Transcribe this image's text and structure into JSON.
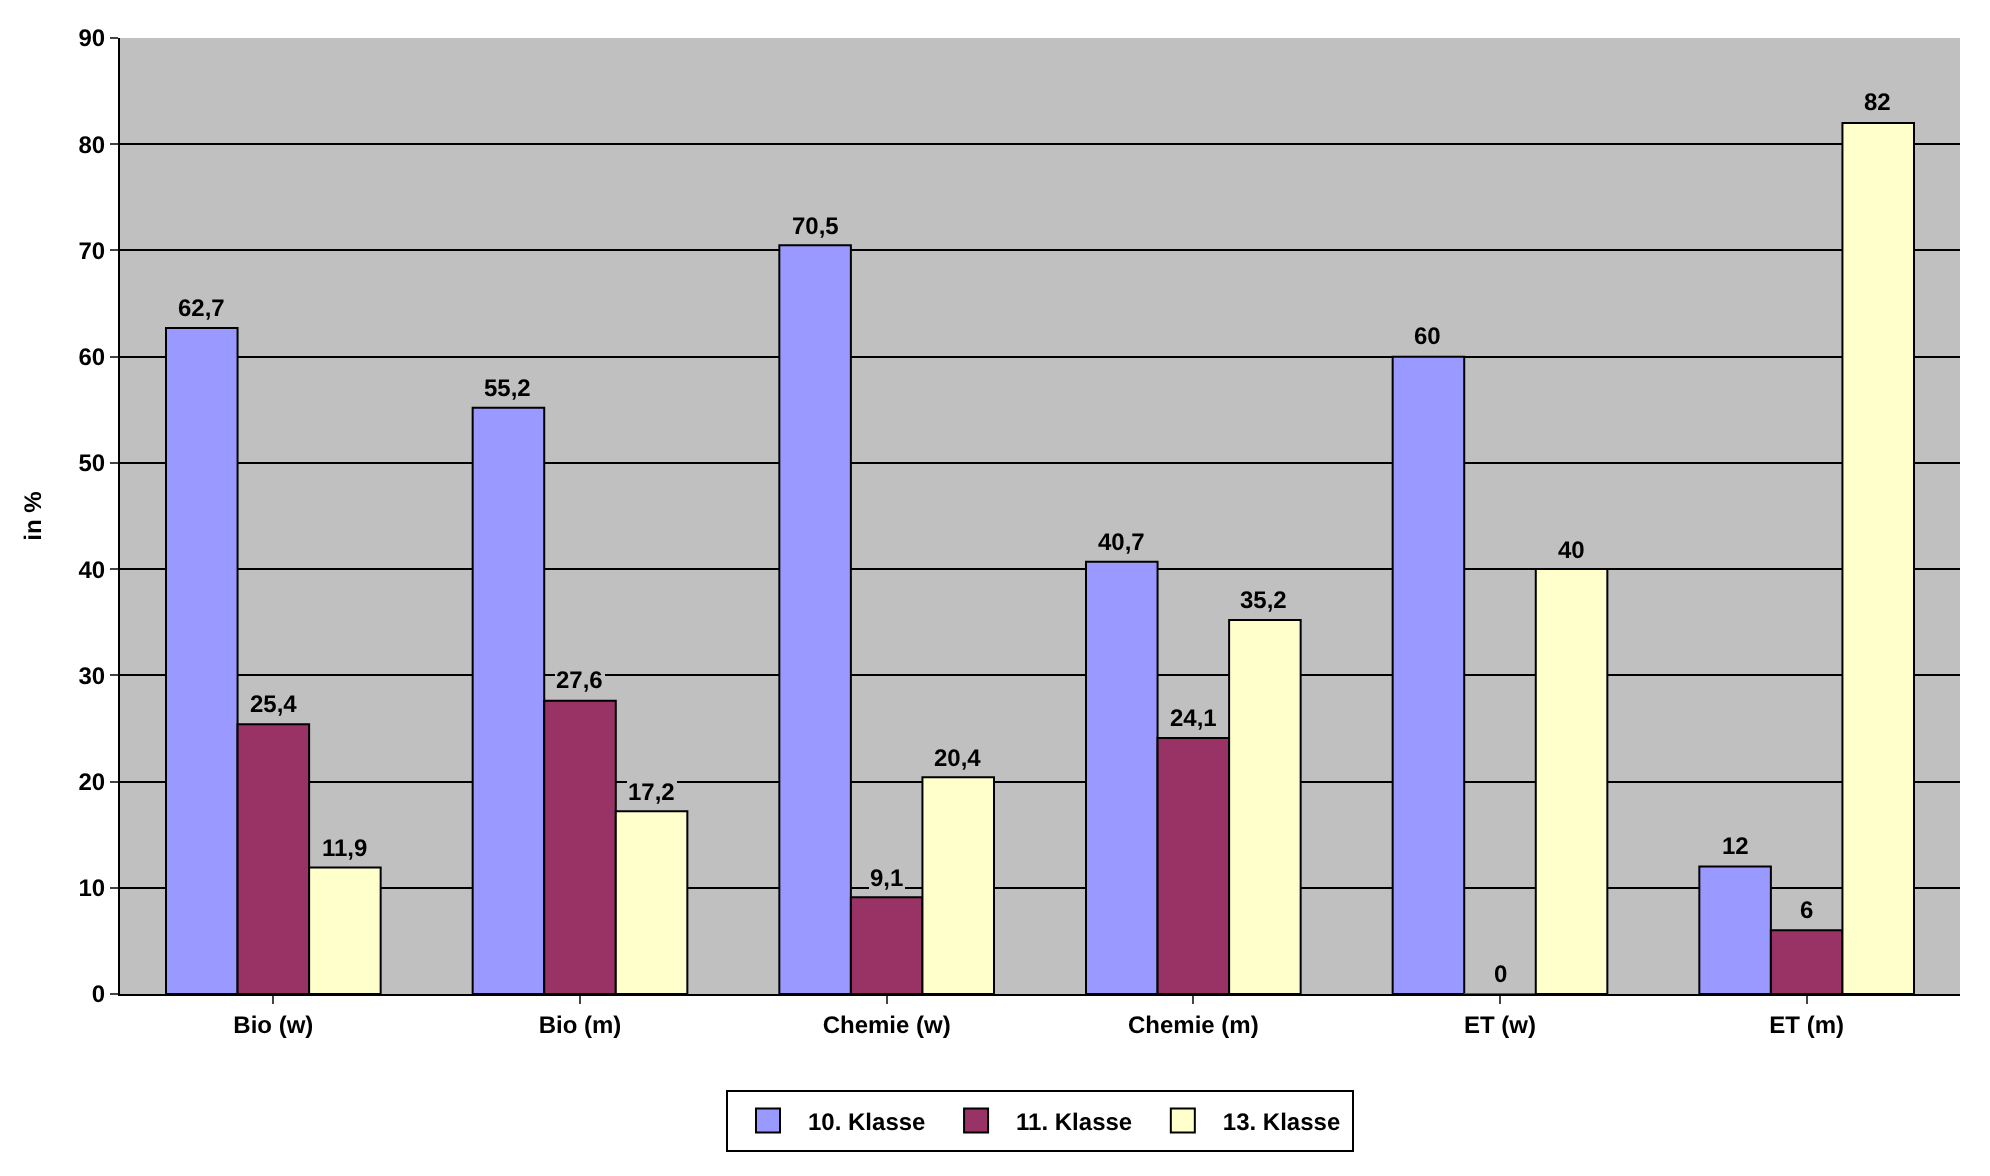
{
  "chart_data": {
    "type": "bar",
    "ylabel": "in %",
    "categories": [
      "Bio (w)",
      "Bio (m)",
      "Chemie (w)",
      "Chemie (m)",
      "ET (w)",
      "ET (m)"
    ],
    "series": [
      {
        "name": "10. Klasse",
        "color": "#9999ff",
        "values": [
          62.7,
          55.2,
          70.5,
          40.7,
          60,
          12
        ],
        "value_labels": [
          "62,7",
          "55,2",
          "70,5",
          "40,7",
          "60",
          "12"
        ]
      },
      {
        "name": "11. Klasse",
        "color": "#993366",
        "values": [
          25.4,
          27.6,
          9.1,
          24.1,
          0,
          6
        ],
        "value_labels": [
          "25,4",
          "27,6",
          "9,1",
          "24,1",
          "0",
          "6"
        ]
      },
      {
        "name": "13. Klasse",
        "color": "#ffffcc",
        "values": [
          11.9,
          17.2,
          20.4,
          35.2,
          40,
          82
        ],
        "value_labels": [
          "11,9",
          "17,2",
          "20,4",
          "35,2",
          "40",
          "82"
        ]
      }
    ],
    "ylim": [
      0,
      90
    ],
    "yticks": [
      0,
      10,
      20,
      30,
      40,
      50,
      60,
      70,
      80,
      90
    ],
    "grid": "y",
    "legend": "bottom",
    "data_labels": true
  }
}
